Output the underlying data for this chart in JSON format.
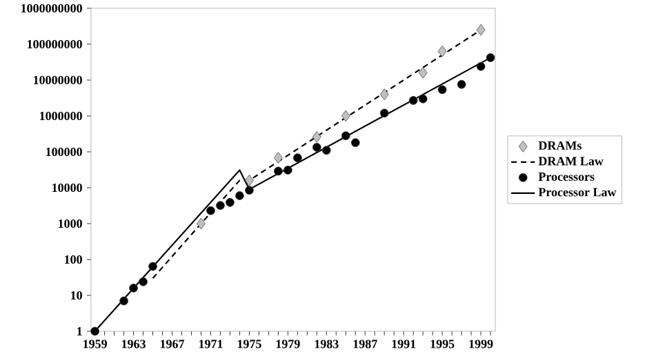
{
  "chart_data": {
    "type": "scatter",
    "xlim": [
      1958.6,
      2000.5
    ],
    "xticks": [
      1959,
      {
        "value": 1960,
        "label": null
      },
      {
        "value": 1961,
        "label": null
      },
      {
        "value": 1962,
        "label": null
      },
      1963,
      {
        "value": 1964,
        "label": null
      },
      {
        "value": 1965,
        "label": null
      },
      {
        "value": 1966,
        "label": null
      },
      1967,
      {
        "value": 1968,
        "label": null
      },
      {
        "value": 1969,
        "label": null
      },
      {
        "value": 1970,
        "label": null
      },
      1971,
      {
        "value": 1972,
        "label": null
      },
      {
        "value": 1973,
        "label": null
      },
      {
        "value": 1974,
        "label": null
      },
      1975,
      {
        "value": 1976,
        "label": null
      },
      {
        "value": 1977,
        "label": null
      },
      {
        "value": 1978,
        "label": null
      },
      1979,
      {
        "value": 1980,
        "label": null
      },
      {
        "value": 1981,
        "label": null
      },
      {
        "value": 1982,
        "label": null
      },
      1983,
      {
        "value": 1984,
        "label": null
      },
      {
        "value": 1985,
        "label": null
      },
      {
        "value": 1986,
        "label": null
      },
      1987,
      {
        "value": 1988,
        "label": null
      },
      {
        "value": 1989,
        "label": null
      },
      {
        "value": 1990,
        "label": null
      },
      1991,
      {
        "value": 1992,
        "label": null
      },
      {
        "value": 1993,
        "label": null
      },
      {
        "value": 1994,
        "label": null
      },
      1995,
      {
        "value": 1996,
        "label": null
      },
      {
        "value": 1997,
        "label": null
      },
      {
        "value": 1998,
        "label": null
      },
      1999,
      {
        "value": 2000,
        "label": null
      }
    ],
    "ylim": [
      1,
      1000000000
    ],
    "yticks": [
      1,
      10,
      100,
      1000,
      10000,
      100000,
      1000000,
      10000000,
      100000000,
      1000000000
    ],
    "log": "y",
    "grid": false,
    "legend": "right",
    "series": [
      {
        "name": "DRAMs",
        "marker": "diamond",
        "color": "#c0c0c0",
        "x": [
          1970,
          1975,
          1978,
          1982,
          1985,
          1989,
          1993,
          1995,
          1999
        ],
        "values": [
          1000,
          16000,
          68000,
          260000,
          1000000,
          4000000,
          16000000,
          63000000,
          250000000
        ]
      },
      {
        "name": "DRAM Law",
        "type": "line",
        "marker": "none",
        "line_style": "dashed",
        "color": "#000000",
        "x": [
          1965,
          1970,
          1974,
          1975,
          1999
        ],
        "values": [
          30,
          1000,
          16000,
          16000,
          250000000
        ]
      },
      {
        "name": "Processors",
        "marker": "circle",
        "color": "#000000",
        "x": [
          1959,
          1962,
          1963,
          1964,
          1965,
          1971,
          1972,
          1973,
          1974,
          1975,
          1978,
          1979,
          1980,
          1982,
          1983,
          1985,
          1986,
          1989,
          1992,
          1993,
          1995,
          1997,
          1999,
          2000
        ],
        "values": [
          1,
          7,
          16,
          24,
          64,
          2300,
          3200,
          3900,
          6000,
          8500,
          29000,
          31000,
          68000,
          134000,
          110000,
          280000,
          180000,
          1200000,
          2700000,
          3000000,
          5400000,
          7600000,
          24000000,
          42000000
        ]
      },
      {
        "name": "Processor Law",
        "type": "line",
        "marker": "none",
        "line_style": "solid",
        "color": "#000000",
        "x": [
          1959,
          1974,
          1975,
          2000
        ],
        "values": [
          1,
          31000,
          9000,
          42000000
        ]
      }
    ]
  }
}
